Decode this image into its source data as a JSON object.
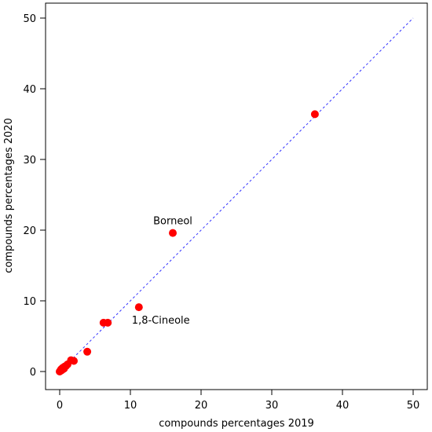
{
  "chart_data": {
    "type": "scatter",
    "title": "",
    "xlabel": "compounds percentages 2019",
    "ylabel": "compounds percentages 2020",
    "xlim": [
      0,
      50
    ],
    "ylim": [
      0,
      50
    ],
    "xticks": [
      0,
      10,
      20,
      30,
      40,
      50
    ],
    "yticks": [
      0,
      10,
      20,
      30,
      40,
      50
    ],
    "grid": false,
    "point_color": "#ff0000",
    "reference_line": {
      "from": [
        0,
        0
      ],
      "to": [
        50,
        50
      ],
      "style": "dashed",
      "color": "#3333ff"
    },
    "points": [
      {
        "x": 0.0,
        "y": 0.0
      },
      {
        "x": 0.1,
        "y": 0.1
      },
      {
        "x": 0.2,
        "y": 0.3
      },
      {
        "x": 0.3,
        "y": 0.2
      },
      {
        "x": 0.4,
        "y": 0.5
      },
      {
        "x": 0.6,
        "y": 0.4
      },
      {
        "x": 0.7,
        "y": 0.7
      },
      {
        "x": 0.9,
        "y": 0.8
      },
      {
        "x": 1.1,
        "y": 1.0
      },
      {
        "x": 1.6,
        "y": 1.6
      },
      {
        "x": 2.0,
        "y": 1.5
      },
      {
        "x": 3.9,
        "y": 2.8
      },
      {
        "x": 6.2,
        "y": 6.9
      },
      {
        "x": 6.8,
        "y": 6.9
      },
      {
        "x": 11.2,
        "y": 9.1
      },
      {
        "x": 16.0,
        "y": 19.6
      },
      {
        "x": 36.1,
        "y": 36.4
      }
    ],
    "annotations": [
      {
        "text": "Borneol",
        "x": 16.0,
        "y": 19.6,
        "position": "above"
      },
      {
        "text": "1,8-Cineole",
        "x": 11.2,
        "y": 9.1,
        "position": "below-right"
      }
    ]
  }
}
